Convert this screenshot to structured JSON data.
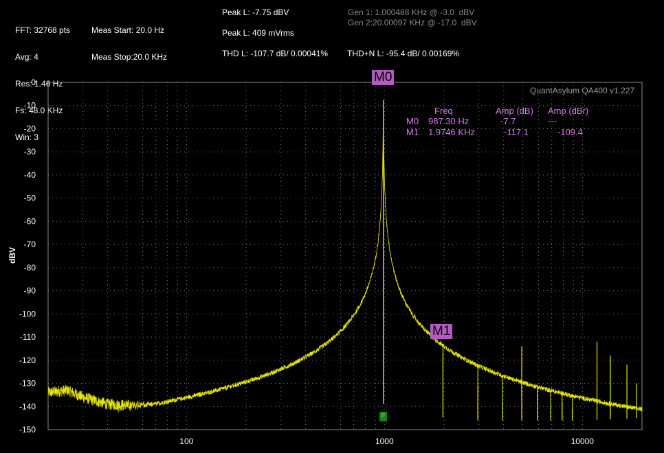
{
  "header": {
    "col1": [
      "FFT: 32768 pts",
      "Avg: 4",
      "Res: 1.46 Hz",
      "Fs: 48.0 KHz",
      "Win: 3"
    ],
    "col2": [
      "Meas Start: 20.0 Hz",
      "Meas Stop:20.0 KHz"
    ],
    "peak1": "Peak L: -7.75 dBV",
    "peak2": "Peak L: 409 mVrms",
    "thd": "THD L: -107.7 dB/ 0.00041%",
    "thdn": "THD+N L: -95.4 dB/ 0.00169%",
    "gen1": "Gen 1: 1.000488 KHz @ -3.0  dBV",
    "gen2": "Gen 2:20.00097 KHz @ -17.0  dBV"
  },
  "brand": "QuantAsylum QA400 v1.227",
  "markers": {
    "m0_label": "M0",
    "m1_label": "M1",
    "table": {
      "h_freq": "Freq",
      "h_amp_db": "Amp (dB)",
      "h_amp_dbr": "Amp (dBr)",
      "rows": [
        {
          "name": "M0",
          "freq": "987.30 Hz",
          "amp_db": "-7.7",
          "amp_dbr": "---"
        },
        {
          "name": "M1",
          "freq": "1.9746 KHz",
          "amp_db": "-117.1",
          "amp_dbr": "-109.4"
        }
      ]
    }
  },
  "f_marker": "F",
  "colors": {
    "trace": "#e8e800",
    "marker": "#b25cc0",
    "marker_text": "#d57ee8",
    "grid": "#7a7a7a"
  },
  "chart_data": {
    "type": "line",
    "xscale": "log",
    "xlim": [
      20,
      20000
    ],
    "ylim": [
      -150,
      0
    ],
    "ylabel": "dBV",
    "xlabel": "",
    "xticks": [
      100,
      1000,
      10000
    ],
    "xtick_labels": [
      "100",
      "1000",
      "10000"
    ],
    "yticks": [
      0,
      -10,
      -20,
      -30,
      -40,
      -50,
      -60,
      -70,
      -80,
      -90,
      -100,
      -110,
      -120,
      -130,
      -140,
      -150
    ],
    "grid": true,
    "series": [
      {
        "peaks": [
          {
            "x": 987.3,
            "y": -7.7
          },
          {
            "x": 1974.6,
            "y": -117.1
          },
          {
            "x": 2962,
            "y": -131
          },
          {
            "x": 3949,
            "y": -138
          },
          {
            "x": 4937,
            "y": -114
          },
          {
            "x": 5924,
            "y": -132
          },
          {
            "x": 6911,
            "y": -140
          },
          {
            "x": 7898,
            "y": -138
          },
          {
            "x": 8886,
            "y": -141
          },
          {
            "x": 11848,
            "y": -112
          },
          {
            "x": 13823,
            "y": -118
          },
          {
            "x": 16784,
            "y": -122
          },
          {
            "x": 18759,
            "y": -130
          }
        ],
        "noise_floor": [
          {
            "x": 20,
            "y": -134
          },
          {
            "x": 25,
            "y": -133
          },
          {
            "x": 30,
            "y": -136
          },
          {
            "x": 40,
            "y": -139
          },
          {
            "x": 60,
            "y": -140
          },
          {
            "x": 100,
            "y": -142
          },
          {
            "x": 200,
            "y": -144
          },
          {
            "x": 400,
            "y": -145
          },
          {
            "x": 700,
            "y": -143
          },
          {
            "x": 900,
            "y": -138
          },
          {
            "x": 1100,
            "y": -140
          },
          {
            "x": 1500,
            "y": -144
          },
          {
            "x": 3000,
            "y": -146
          },
          {
            "x": 10000,
            "y": -146
          },
          {
            "x": 20000,
            "y": -145
          }
        ]
      }
    ]
  }
}
